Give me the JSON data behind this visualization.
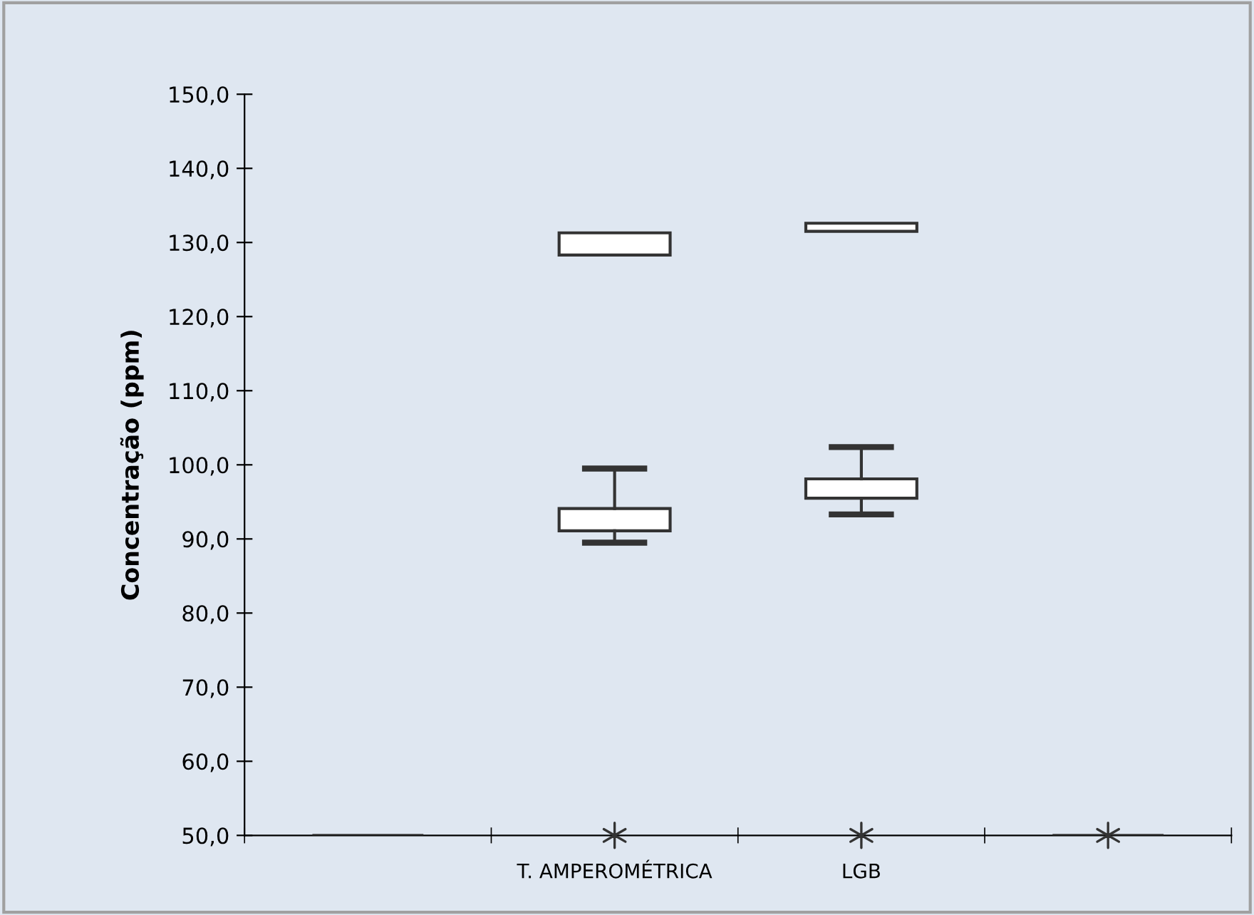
{
  "chart_data": {
    "type": "box",
    "ylabel": "Concentração (ppm)",
    "categories": [
      null,
      "T. AMPEROMÉTRICA",
      "LGB",
      null
    ],
    "boxes": [
      null,
      {
        "low": 89.5,
        "q1": 91.1,
        "median": 91.1,
        "q3": 94.1,
        "high": 99.5
      },
      {
        "low": 93.3,
        "q1": 95.5,
        "median": 95.5,
        "q3": 98.1,
        "high": 102.4
      },
      null
    ],
    "series": [
      {
        "type": "bar",
        "color": "#ffffff",
        "base": [
          null,
          128.3,
          131.5,
          null
        ],
        "values": [
          null,
          3.0,
          1.1,
          null
        ]
      },
      {
        "type": "bar",
        "color": "#333333",
        "base": [
          50,
          null,
          null,
          50
        ],
        "values": [
          0,
          null,
          null,
          0
        ]
      },
      {
        "type": "scatter",
        "color": "#333333",
        "marker": "cross",
        "values": [
          null,
          50,
          50,
          50
        ]
      }
    ],
    "ylim": [
      50,
      150
    ],
    "yticks": [
      {
        "value": 50,
        "label": "50,0"
      },
      {
        "value": 60,
        "label": "60,0"
      },
      {
        "value": 70,
        "label": "70,0"
      },
      {
        "value": 80,
        "label": "80,0"
      },
      {
        "value": 90,
        "label": "90,0"
      },
      {
        "value": 100,
        "label": "100,0"
      },
      {
        "value": 110,
        "label": "110,0"
      },
      {
        "value": 120,
        "label": "120,0"
      },
      {
        "value": 130,
        "label": "130,0"
      },
      {
        "value": 140,
        "label": "140,0"
      },
      {
        "value": 150,
        "label": "150,0"
      }
    ],
    "grid": false
  }
}
